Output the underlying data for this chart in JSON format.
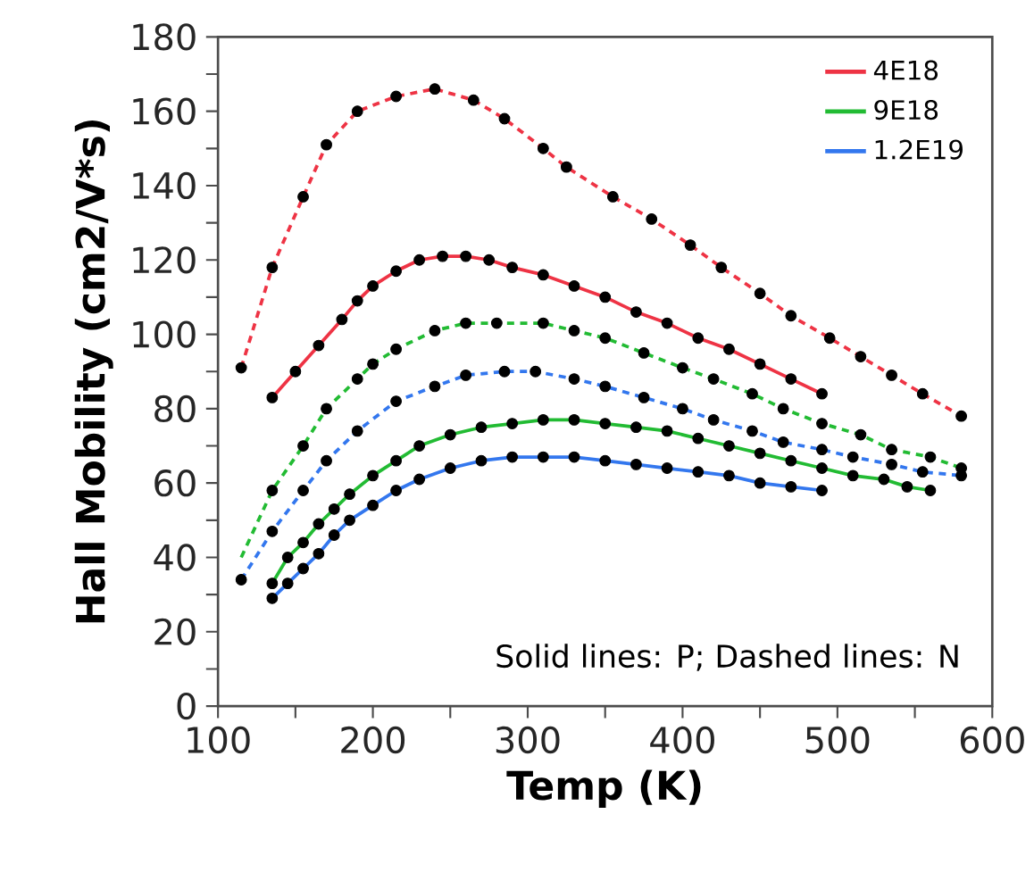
{
  "chart_data": {
    "type": "line",
    "xlabel": "Temp (K)",
    "ylabel": "Hall Mobility (cm2/V*s)",
    "xlim": [
      100,
      600
    ],
    "ylim": [
      0,
      180
    ],
    "xticks": [
      100,
      200,
      300,
      400,
      500,
      600,
      {
        "value": 150,
        "label": null
      },
      {
        "value": 250,
        "label": null
      },
      {
        "value": 350,
        "label": null
      },
      {
        "value": 450,
        "label": null
      },
      {
        "value": 550,
        "label": null
      }
    ],
    "yticks": [
      0,
      20,
      40,
      60,
      80,
      100,
      120,
      140,
      160,
      180,
      {
        "value": 10,
        "label": null
      },
      {
        "value": 30,
        "label": null
      },
      {
        "value": 50,
        "label": null
      },
      {
        "value": 70,
        "label": null
      },
      {
        "value": 90,
        "label": null
      },
      {
        "value": 110,
        "label": null
      },
      {
        "value": 130,
        "label": null
      },
      {
        "value": 150,
        "label": null
      },
      {
        "value": 170,
        "label": null
      }
    ],
    "legend": "top right",
    "grid": false,
    "annotations": [
      "Solid lines: P; Dashed lines: N"
    ],
    "series": [
      {
        "name": "4E18",
        "line_style": "solid",
        "color": "#ee3344",
        "x": [
          135,
          150,
          165,
          180,
          190,
          200,
          215,
          230,
          245,
          260,
          275,
          290,
          310,
          330,
          350,
          370,
          390,
          410,
          430,
          450,
          470,
          490
        ],
        "values": [
          83,
          90,
          97,
          104,
          109,
          113,
          117,
          120,
          121,
          121,
          120,
          118,
          116,
          113,
          110,
          106,
          103,
          99,
          96,
          92,
          88,
          84
        ]
      },
      {
        "name": "9E18",
        "line_style": "solid",
        "color": "#22bb33",
        "x": [
          135,
          145,
          155,
          165,
          175,
          185,
          200,
          215,
          230,
          250,
          270,
          290,
          310,
          330,
          350,
          370,
          390,
          410,
          430,
          450,
          470,
          490,
          510,
          530,
          545,
          560
        ],
        "values": [
          33,
          40,
          44,
          49,
          53,
          57,
          62,
          66,
          70,
          73,
          75,
          76,
          77,
          77,
          76,
          75,
          74,
          72,
          70,
          68,
          66,
          64,
          62,
          61,
          59,
          58
        ]
      },
      {
        "name": "1.2E19",
        "line_style": "solid",
        "color": "#3377ee",
        "x": [
          135,
          145,
          155,
          165,
          175,
          185,
          200,
          215,
          230,
          250,
          270,
          290,
          310,
          330,
          350,
          370,
          390,
          410,
          430,
          450,
          470,
          490
        ],
        "values": [
          29,
          33,
          37,
          41,
          46,
          50,
          54,
          58,
          61,
          64,
          66,
          67,
          67,
          67,
          66,
          65,
          64,
          63,
          62,
          60,
          59,
          58
        ]
      },
      {
        "line_style": "dashed",
        "color": "#ee3344",
        "x": [
          115,
          135,
          155,
          170,
          190,
          215,
          240,
          265,
          285,
          310,
          325,
          355,
          380,
          405,
          425,
          450,
          470,
          495,
          515,
          535,
          555,
          580
        ],
        "values": [
          91,
          118,
          137,
          151,
          160,
          164,
          166,
          163,
          158,
          150,
          145,
          137,
          131,
          124,
          118,
          111,
          105,
          99,
          94,
          89,
          84,
          78
        ]
      },
      {
        "line_style": "dashed",
        "color": "#22bb33",
        "x": [
          115,
          135,
          155,
          170,
          190,
          200,
          215,
          240,
          260,
          280,
          310,
          330,
          350,
          375,
          400,
          420,
          445,
          465,
          490,
          515,
          535,
          560,
          580
        ],
        "values": [
          40,
          58,
          70,
          80,
          88,
          92,
          96,
          101,
          103,
          103,
          103,
          101,
          99,
          95,
          91,
          88,
          84,
          80,
          76,
          73,
          69,
          67,
          64
        ]
      },
      {
        "line_style": "dashed",
        "color": "#3377ee",
        "x": [
          115,
          135,
          155,
          170,
          190,
          215,
          240,
          260,
          285,
          305,
          330,
          350,
          375,
          400,
          420,
          445,
          465,
          490,
          510,
          535,
          555,
          580
        ],
        "values": [
          34,
          47,
          58,
          66,
          74,
          82,
          86,
          89,
          90,
          90,
          88,
          86,
          83,
          80,
          77,
          74,
          71,
          69,
          67,
          65,
          63,
          62
        ]
      },
      {
        "type": "scatter",
        "marker": "circle",
        "color": "#000000",
        "x": [
          135,
          150,
          165,
          180,
          190,
          200,
          215,
          230,
          245,
          260,
          275,
          290,
          310,
          330,
          350,
          370,
          390,
          410,
          430,
          450,
          470,
          490
        ],
        "values": [
          83,
          90,
          97,
          104,
          109,
          113,
          117,
          120,
          121,
          121,
          120,
          118,
          116,
          113,
          110,
          106,
          103,
          99,
          96,
          92,
          88,
          84
        ]
      },
      {
        "type": "scatter",
        "marker": "circle",
        "color": "#000000",
        "x": [
          135,
          145,
          155,
          165,
          175,
          185,
          200,
          215,
          230,
          250,
          270,
          290,
          310,
          330,
          350,
          370,
          390,
          410,
          430,
          450,
          470,
          490,
          510,
          530,
          545,
          560
        ],
        "values": [
          33,
          40,
          44,
          49,
          53,
          57,
          62,
          66,
          70,
          73,
          75,
          76,
          77,
          77,
          76,
          75,
          74,
          72,
          70,
          68,
          66,
          64,
          62,
          61,
          59,
          58
        ]
      },
      {
        "type": "scatter",
        "marker": "circle",
        "color": "#000000",
        "x": [
          135,
          145,
          155,
          165,
          175,
          185,
          200,
          215,
          230,
          250,
          270,
          290,
          310,
          330,
          350,
          370,
          390,
          410,
          430,
          450,
          470,
          490
        ],
        "values": [
          29,
          33,
          37,
          41,
          46,
          50,
          54,
          58,
          61,
          64,
          66,
          67,
          67,
          67,
          66,
          65,
          64,
          63,
          62,
          60,
          59,
          58
        ]
      },
      {
        "type": "scatter",
        "marker": "circle",
        "color": "#000000",
        "x": [
          115,
          135,
          155,
          170,
          190,
          215,
          240,
          265,
          285,
          310,
          325,
          355,
          380,
          405,
          425,
          450,
          470,
          495,
          515,
          535,
          555,
          580
        ],
        "values": [
          91,
          118,
          137,
          151,
          160,
          164,
          166,
          163,
          158,
          150,
          145,
          137,
          131,
          124,
          118,
          111,
          105,
          99,
          94,
          89,
          84,
          78
        ]
      },
      {
        "type": "scatter",
        "marker": "circle",
        "color": "#000000",
        "x": [
          135,
          155,
          170,
          190,
          200,
          215,
          240,
          260,
          280,
          310,
          330,
          350,
          375,
          400,
          420,
          445,
          465,
          490,
          515,
          535,
          560,
          580
        ],
        "values": [
          58,
          70,
          80,
          88,
          92,
          96,
          101,
          103,
          103,
          103,
          101,
          99,
          95,
          91,
          88,
          84,
          80,
          76,
          73,
          69,
          67,
          64
        ]
      },
      {
        "type": "scatter",
        "marker": "circle",
        "color": "#000000",
        "x": [
          115,
          135,
          155,
          170,
          190,
          215,
          240,
          260,
          285,
          305,
          330,
          350,
          375,
          400,
          420,
          445,
          465,
          490,
          510,
          535,
          555,
          580
        ],
        "values": [
          34,
          47,
          58,
          66,
          74,
          82,
          86,
          89,
          90,
          90,
          88,
          86,
          83,
          80,
          77,
          74,
          71,
          69,
          67,
          65,
          63,
          62
        ]
      }
    ]
  }
}
